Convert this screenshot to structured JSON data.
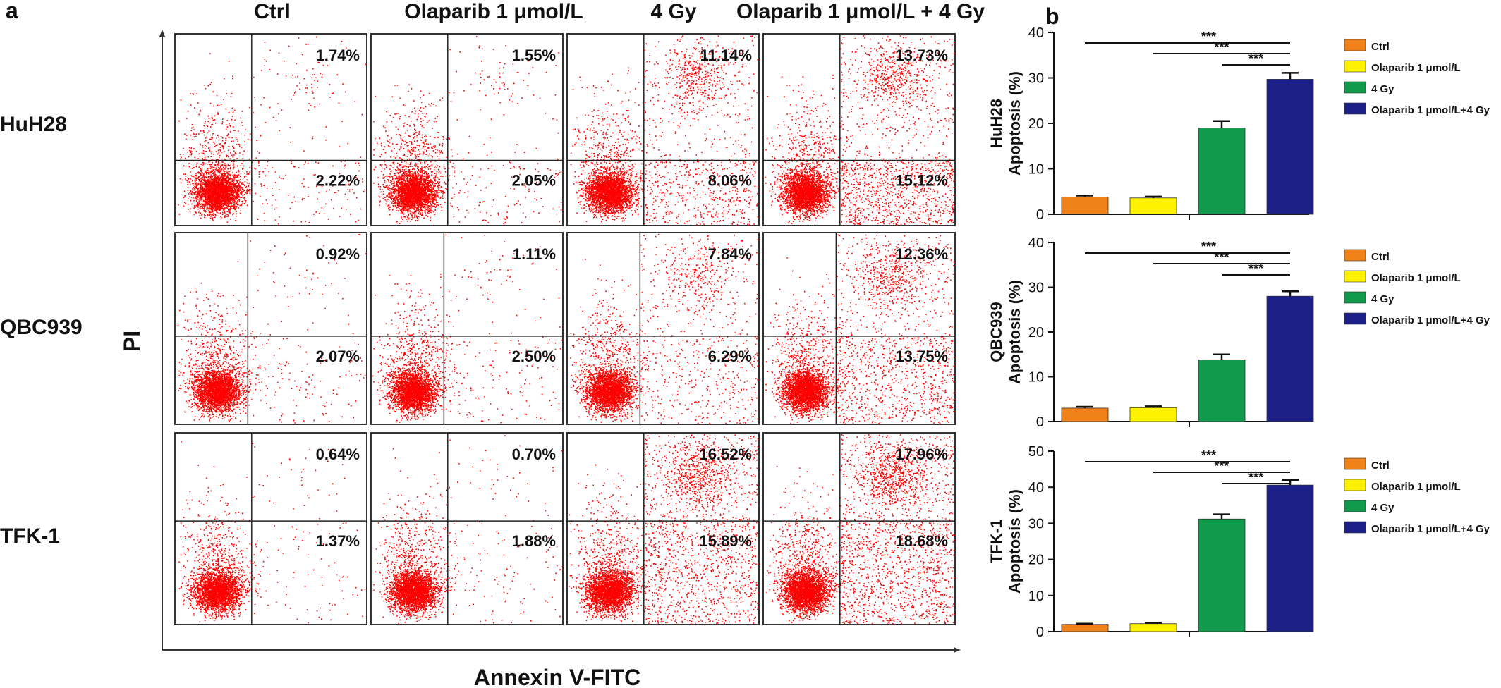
{
  "panel_a": {
    "label": "a",
    "columns": [
      "Ctrl",
      "Olaparib 1 μmol/L",
      "4 Gy",
      "Olaparib 1 μmol/L + 4 Gy"
    ],
    "rows": [
      "HuH28",
      "QBC939",
      "TFK-1"
    ],
    "xlabel": "Annexin V-FITC",
    "ylabel": "PI",
    "dot_color": "#ff0000",
    "quadrants": [
      [
        {
          "upper": "1.74%",
          "lower": "2.22%"
        },
        {
          "upper": "1.55%",
          "lower": "2.05%"
        },
        {
          "upper": "11.14%",
          "lower": "8.06%"
        },
        {
          "upper": "13.73%",
          "lower": "15.12%"
        }
      ],
      [
        {
          "upper": "0.92%",
          "lower": "2.07%"
        },
        {
          "upper": "1.11%",
          "lower": "2.50%"
        },
        {
          "upper": "7.84%",
          "lower": "6.29%"
        },
        {
          "upper": "12.36%",
          "lower": "13.75%"
        }
      ],
      [
        {
          "upper": "0.64%",
          "lower": "1.37%"
        },
        {
          "upper": "0.70%",
          "lower": "1.88%"
        },
        {
          "upper": "16.52%",
          "lower": "15.89%"
        },
        {
          "upper": "17.96%",
          "lower": "18.68%"
        }
      ]
    ]
  },
  "panel_b": {
    "label": "b",
    "legend": [
      "Ctrl",
      "Olaparib 1 μmol/L",
      "4 Gy",
      "Olaparib 1 μmol/L+4 Gy"
    ],
    "significance": "***"
  },
  "chart_data": [
    {
      "type": "bar",
      "row_label": "HuH28",
      "ylabel": "Apoptosis (%)",
      "categories": [
        "Ctrl",
        "Olaparib 1 μmol/L",
        "4 Gy",
        "Olaparib 1 μmol/L+4 Gy"
      ],
      "values": [
        3.8,
        3.6,
        19.0,
        29.7
      ],
      "errors": [
        0.3,
        0.3,
        1.5,
        1.4
      ],
      "ylim": [
        0,
        40
      ],
      "yticks": [
        0,
        10,
        20,
        30,
        40
      ],
      "colors": [
        "#f08219",
        "#fff200",
        "#119a4b",
        "#1c1f86"
      ]
    },
    {
      "type": "bar",
      "row_label": "QBC939",
      "ylabel": "Apoptosis (%)",
      "categories": [
        "Ctrl",
        "Olaparib 1 μmol/L",
        "4 Gy",
        "Olaparib 1 μmol/L+4 Gy"
      ],
      "values": [
        3.0,
        3.1,
        13.8,
        28.0
      ],
      "errors": [
        0.3,
        0.3,
        1.2,
        1.1
      ],
      "ylim": [
        0,
        40
      ],
      "yticks": [
        0,
        10,
        20,
        30,
        40
      ],
      "colors": [
        "#f08219",
        "#fff200",
        "#119a4b",
        "#1c1f86"
      ]
    },
    {
      "type": "bar",
      "row_label": "TFK-1",
      "ylabel": "Apoptosis (%)",
      "categories": [
        "Ctrl",
        "Olaparib 1 μmol/L",
        "4 Gy",
        "Olaparib 1 μmol/L+4 Gy"
      ],
      "values": [
        2.0,
        2.2,
        31.2,
        40.6
      ],
      "errors": [
        0.2,
        0.3,
        1.3,
        1.4
      ],
      "ylim": [
        0,
        50
      ],
      "yticks": [
        0,
        10,
        20,
        30,
        40,
        50
      ],
      "colors": [
        "#f08219",
        "#fff200",
        "#119a4b",
        "#1c1f86"
      ]
    }
  ]
}
